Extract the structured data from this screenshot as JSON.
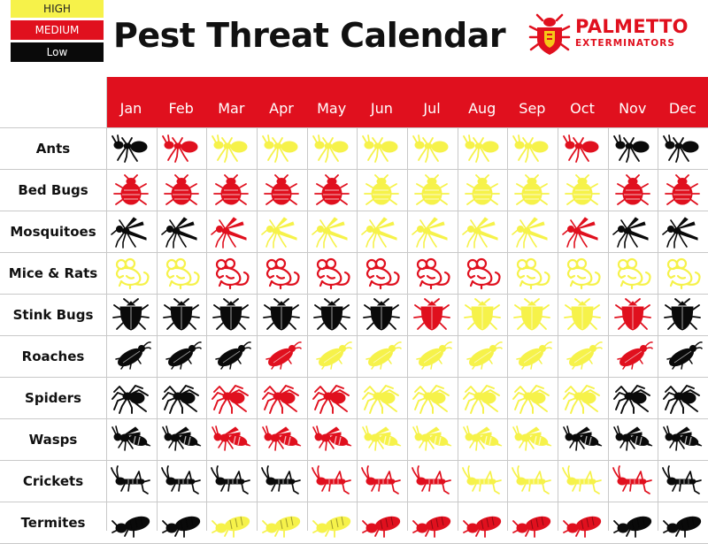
{
  "legend": {
    "high": "HIGH",
    "medium": "MEDIUM",
    "low": "Low"
  },
  "title": "Pest Threat Calendar",
  "logo": {
    "line1": "PALMETTO",
    "line2": "EXTERMINATORS",
    "icon": "bug-shield-icon"
  },
  "colors": {
    "high": "#f6f24a",
    "medium": "#e0101e",
    "low": "#0a0a0a",
    "header": "#e0101e"
  },
  "months": [
    "Jan",
    "Feb",
    "Mar",
    "Apr",
    "May",
    "Jun",
    "Jul",
    "Aug",
    "Sep",
    "Oct",
    "Nov",
    "Dec"
  ],
  "rows": [
    {
      "label": "Ants",
      "icon": "ant-icon",
      "levels": [
        "low",
        "medium",
        "high",
        "high",
        "high",
        "high",
        "high",
        "high",
        "high",
        "medium",
        "low",
        "low"
      ]
    },
    {
      "label": "Bed Bugs",
      "icon": "bed-bug-icon",
      "levels": [
        "medium",
        "medium",
        "medium",
        "medium",
        "medium",
        "high",
        "high",
        "high",
        "high",
        "high",
        "medium",
        "medium"
      ]
    },
    {
      "label": "Mosquitoes",
      "icon": "mosquito-icon",
      "levels": [
        "low",
        "low",
        "medium",
        "high",
        "high",
        "high",
        "high",
        "high",
        "high",
        "medium",
        "low",
        "low"
      ]
    },
    {
      "label": "Mice & Rats",
      "icon": "mouse-icon",
      "levels": [
        "high",
        "high",
        "medium",
        "medium",
        "medium",
        "medium",
        "medium",
        "medium",
        "high",
        "high",
        "high",
        "high"
      ]
    },
    {
      "label": "Stink Bugs",
      "icon": "stink-bug-icon",
      "levels": [
        "low",
        "low",
        "low",
        "low",
        "low",
        "low",
        "medium",
        "high",
        "high",
        "high",
        "medium",
        "low"
      ]
    },
    {
      "label": "Roaches",
      "icon": "roach-icon",
      "levels": [
        "low",
        "low",
        "low",
        "medium",
        "high",
        "high",
        "high",
        "high",
        "high",
        "high",
        "medium",
        "low"
      ]
    },
    {
      "label": "Spiders",
      "icon": "spider-icon",
      "levels": [
        "low",
        "low",
        "medium",
        "medium",
        "medium",
        "high",
        "high",
        "high",
        "high",
        "high",
        "low",
        "low"
      ]
    },
    {
      "label": "Wasps",
      "icon": "wasp-icon",
      "levels": [
        "low",
        "low",
        "medium",
        "medium",
        "medium",
        "high",
        "high",
        "high",
        "high",
        "low",
        "low",
        "low"
      ]
    },
    {
      "label": "Crickets",
      "icon": "cricket-icon",
      "levels": [
        "low",
        "low",
        "low",
        "low",
        "medium",
        "medium",
        "medium",
        "high",
        "high",
        "high",
        "medium",
        "low"
      ]
    },
    {
      "label": "Termites",
      "icon": "termite-icon",
      "levels": [
        "low",
        "low",
        "high",
        "high",
        "high",
        "medium",
        "medium",
        "medium",
        "medium",
        "medium",
        "low",
        "low"
      ]
    }
  ]
}
